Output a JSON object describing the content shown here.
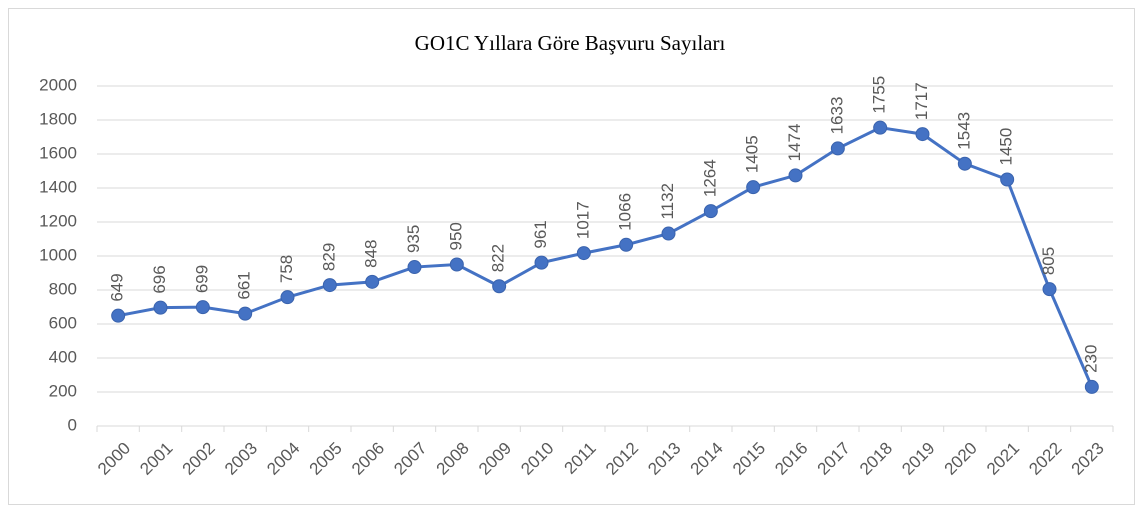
{
  "chart_data": {
    "type": "line",
    "title": "GO1C Yıllara Göre Başvuru Sayıları",
    "categories": [
      "2000",
      "2001",
      "2002",
      "2003",
      "2004",
      "2005",
      "2006",
      "2007",
      "2008",
      "2009",
      "2010",
      "2011",
      "2012",
      "2013",
      "2014",
      "2015",
      "2016",
      "2017",
      "2018",
      "2019",
      "2020",
      "2021",
      "2022",
      "2023"
    ],
    "values": [
      649,
      696,
      699,
      661,
      758,
      829,
      848,
      935,
      950,
      822,
      961,
      1017,
      1066,
      1132,
      1264,
      1405,
      1474,
      1633,
      1755,
      1717,
      1543,
      1450,
      805,
      230
    ],
    "color": "#4472c4",
    "ylim": [
      0,
      2000
    ],
    "yticks": [
      0,
      200,
      400,
      600,
      800,
      1000,
      1200,
      1400,
      1600,
      1800,
      2000
    ],
    "grid": true
  }
}
